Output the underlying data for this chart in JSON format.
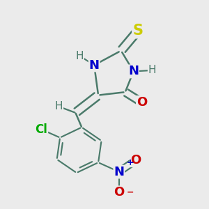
{
  "background_color": "#ebebeb",
  "bond_color": "#4a7a6a",
  "bond_width": 1.8,
  "figsize": [
    3.0,
    3.0
  ],
  "dpi": 100,
  "colors": {
    "S": "#cccc00",
    "N": "#0000cc",
    "O": "#cc0000",
    "Cl": "#00aa00",
    "C": "#4a7a6a",
    "H": "#4a7a6a"
  }
}
